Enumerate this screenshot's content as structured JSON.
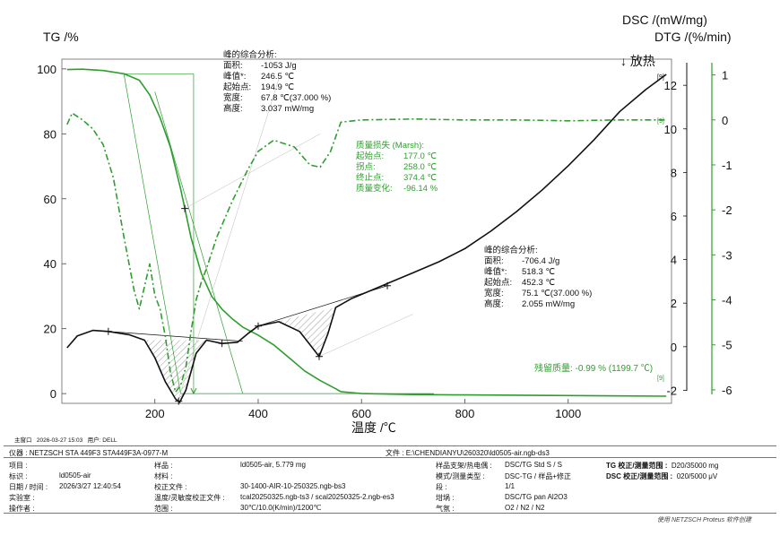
{
  "chart_data": {
    "type": "line",
    "xlabel": "温度 /℃",
    "x_ticks": [
      "200",
      "400",
      "600",
      "800",
      "1000"
    ],
    "xlim": [
      20,
      1200
    ],
    "axes": {
      "tg": {
        "title": "TG /%",
        "ticks": [
          "100",
          "80",
          "60",
          "40",
          "20",
          "0"
        ],
        "ylim": [
          -3,
          103
        ]
      },
      "dsc": {
        "title": "DSC /(mW/mg)",
        "ticks": [
          "12",
          "10",
          "8",
          "6",
          "4",
          "2",
          "0",
          "-2"
        ],
        "ylim": [
          -2.6,
          13.2
        ]
      },
      "dtg": {
        "title": "DTG /(%/min)",
        "ticks": [
          "1",
          "0",
          "-1",
          "-2",
          "-3",
          "-4",
          "-5",
          "-6"
        ],
        "ylim": [
          -6.3,
          1.35
        ]
      }
    },
    "series": [
      {
        "axis": "tg",
        "color": "#2e9e2e",
        "style": "solid",
        "x": [
          30,
          60,
          100,
          140,
          170,
          190,
          210,
          230,
          250,
          270,
          290,
          310,
          330,
          350,
          370,
          400,
          430,
          460,
          490,
          520,
          550,
          560,
          600,
          700,
          800,
          900,
          1000,
          1100,
          1190
        ],
        "y": [
          99.8,
          99.9,
          99.5,
          98.5,
          96.5,
          92,
          85,
          76,
          63,
          48,
          37,
          30,
          26,
          23,
          20.5,
          18,
          15,
          11,
          7,
          4,
          1.5,
          0.6,
          0,
          -0.3,
          -0.4,
          -0.5,
          -0.6,
          -0.7,
          -0.8
        ]
      },
      {
        "axis": "dsc",
        "color": "#111111",
        "style": "solid",
        "x": [
          30,
          50,
          80,
          110,
          150,
          180,
          200,
          220,
          240,
          248,
          260,
          280,
          300,
          330,
          360,
          380,
          400,
          440,
          480,
          500,
          518,
          535,
          550,
          580,
          620,
          660,
          700,
          750,
          800,
          850,
          900,
          950,
          1000,
          1050,
          1100,
          1150,
          1190
        ],
        "y": [
          -0.05,
          0.5,
          0.75,
          0.7,
          0.55,
          0.3,
          -0.5,
          -1.6,
          -2.4,
          -2.55,
          -2.0,
          -0.3,
          0.3,
          0.15,
          0.2,
          0.6,
          0.95,
          1.15,
          0.7,
          0.1,
          -0.45,
          0.6,
          1.8,
          2.2,
          2.6,
          3.0,
          3.4,
          3.9,
          4.5,
          5.3,
          6.2,
          7.2,
          8.3,
          9.5,
          10.8,
          11.8,
          12.5
        ]
      },
      {
        "axis": "dtg",
        "color": "#2e9e2e",
        "style": "dashdot",
        "x": [
          30,
          40,
          60,
          80,
          100,
          120,
          140,
          160,
          170,
          180,
          190,
          200,
          210,
          220,
          230,
          240,
          250,
          260,
          270,
          280,
          290,
          300,
          320,
          350,
          380,
          400,
          430,
          470,
          500,
          520,
          540,
          560,
          600,
          700,
          800,
          900,
          1000,
          1100,
          1190
        ],
        "y": [
          -0.1,
          0.15,
          0,
          -0.2,
          -0.55,
          -1.3,
          -2.6,
          -3.8,
          -4.2,
          -3.7,
          -3.2,
          -3.9,
          -4.2,
          -4.8,
          -5.6,
          -6.05,
          -5.9,
          -5.5,
          -4.7,
          -4.0,
          -3.6,
          -3.3,
          -2.6,
          -1.8,
          -1.1,
          -0.7,
          -0.45,
          -0.6,
          -1.0,
          -1.05,
          -0.7,
          -0.05,
          0,
          0.02,
          0,
          0,
          -0.02,
          0,
          0
        ]
      }
    ],
    "annotations": {
      "marker_top": "[9]",
      "marker_bottom": "[9]",
      "exo_label": "↓ 放热",
      "peak1": {
        "title": "峰的综合分析:",
        "rows": [
          {
            "label": "面积:",
            "value": "-1053 J/g"
          },
          {
            "label": "峰值*:",
            "value": "246.5 ℃"
          },
          {
            "label": "起始点:",
            "value": "194.9 ℃"
          },
          {
            "label": "宽度:",
            "value": "67.8 ℃(37.000 %)"
          },
          {
            "label": "高度:",
            "value": "3.037 mW/mg"
          }
        ]
      },
      "mass_loss": {
        "title": "质量损失 (Marsh):",
        "rows": [
          {
            "label": "起始点:",
            "value": "177.0 ℃"
          },
          {
            "label": "拐点:",
            "value": "258.0 ℃"
          },
          {
            "label": "终止点:",
            "value": "374.4 ℃"
          },
          {
            "label": "质量变化:",
            "value": "-96.14 %"
          }
        ]
      },
      "peak2": {
        "title": "峰的综合分析:",
        "rows": [
          {
            "label": "面积:",
            "value": "-706.4 J/g"
          },
          {
            "label": "峰值*:",
            "value": "518.3 ℃"
          },
          {
            "label": "起始点:",
            "value": "452.3 ℃"
          },
          {
            "label": "宽度:",
            "value": "75.1 ℃(37.000 %)"
          },
          {
            "label": "高度:",
            "value": "2.055 mW/mg"
          }
        ]
      },
      "residual": "残留质量: -0.99 % (1199.7 ℃)"
    }
  },
  "footer": {
    "window_label": "主窗口",
    "window_date": "2026-03-27 15:03",
    "user": "用户: DELL",
    "instrument_label": "仪器 :",
    "instrument_value": "NETZSCH STA 449F3 STA449F3A-0977-M",
    "file_label": "文件 :",
    "file_value": "E:\\CHENDIANYU\\260320\\ld0505-air.ngb-ds3",
    "project_label": "项目 :",
    "project_value": "",
    "id_label": "标识 :",
    "id_value": "ld0505-air",
    "datetime_label": "日期 / 时间 :",
    "datetime_value": "2026/3/27 12:40:54",
    "lab_label": "实验室 :",
    "lab_value": "",
    "operator_label": "操作者 :",
    "operator_value": "",
    "sample_label": "样品 :",
    "sample_value": "ld0505-air, 5.779 mg",
    "material_label": "材料 :",
    "material_value": "",
    "calfile_label": "校正文件 :",
    "calfile_value": "30-1400-AIR-10-250325.ngb-bs3",
    "tempcal_label": "温度/灵敏度校正文件 :",
    "tempcal_value": "tcal20250325.ngb-ts3 / scal20250325-2.ngb-es3",
    "range_label": "范围 :",
    "range_value": "30℃/10.0(K/min)/1200℃",
    "holder_label": "样品支架/热电偶 :",
    "holder_value": "DSC/TG Std S / S",
    "mode_label": "模式/测量类型 :",
    "mode_value": "DSC-TG / 样品+修正",
    "segment_label": "段 :",
    "segment_value": "1/1",
    "crucible_label": "坩埚 :",
    "crucible_value": "DSC/TG pan Al2O3",
    "atmos_label": "气氛 :",
    "atmos_value": "O2 / N2 / N2",
    "tgcal_label": "TG 校正/测量范围 :",
    "tgcal_value": "D20/35000 mg",
    "dsccal_label": "DSC 校正/测量范围 :",
    "dsccal_value": "020/5000 μV",
    "credit": "使用 NETZSCH Proteus 软件创建"
  }
}
